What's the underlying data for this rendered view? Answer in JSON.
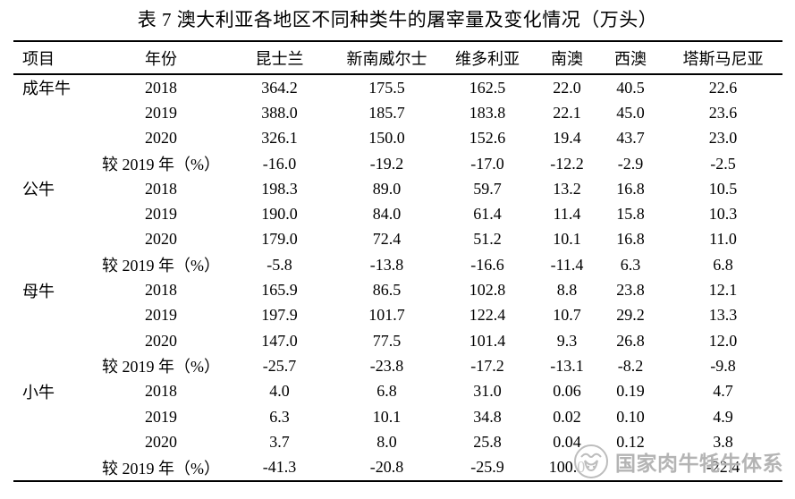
{
  "title": "表 7 澳大利亚各地区不同种类牛的屠宰量及变化情况（万头）",
  "colors": {
    "text": "#000000",
    "background": "#ffffff",
    "watermark": "#b4b4b4"
  },
  "table": {
    "columns": [
      "项目",
      "年份",
      "昆士兰",
      "新南威尔士",
      "维多利亚",
      "南澳",
      "西澳",
      "塔斯马尼亚"
    ],
    "groups": [
      {
        "item": "成年牛",
        "rows": [
          {
            "year": "2018",
            "values": [
              "364.2",
              "175.5",
              "162.5",
              "22.0",
              "40.5",
              "22.6"
            ]
          },
          {
            "year": "2019",
            "values": [
              "388.0",
              "185.7",
              "183.8",
              "22.1",
              "45.0",
              "23.6"
            ]
          },
          {
            "year": "2020",
            "values": [
              "326.1",
              "150.0",
              "152.6",
              "19.4",
              "43.7",
              "23.0"
            ]
          },
          {
            "year": "较 2019 年（%）",
            "values": [
              "-16.0",
              "-19.2",
              "-17.0",
              "-12.2",
              "-2.9",
              "-2.5"
            ]
          }
        ]
      },
      {
        "item": "公牛",
        "rows": [
          {
            "year": "2018",
            "values": [
              "198.3",
              "89.0",
              "59.7",
              "13.2",
              "16.8",
              "10.5"
            ]
          },
          {
            "year": "2019",
            "values": [
              "190.0",
              "84.0",
              "61.4",
              "11.4",
              "15.8",
              "10.3"
            ]
          },
          {
            "year": "2020",
            "values": [
              "179.0",
              "72.4",
              "51.2",
              "10.1",
              "16.8",
              "11.0"
            ]
          },
          {
            "year": "较 2019 年（%）",
            "values": [
              "-5.8",
              "-13.8",
              "-16.6",
              "-11.4",
              "6.3",
              "6.8"
            ]
          }
        ]
      },
      {
        "item": "母牛",
        "rows": [
          {
            "year": "2018",
            "values": [
              "165.9",
              "86.5",
              "102.8",
              "8.8",
              "23.8",
              "12.1"
            ]
          },
          {
            "year": "2019",
            "values": [
              "197.9",
              "101.7",
              "122.4",
              "10.7",
              "29.2",
              "13.3"
            ]
          },
          {
            "year": "2020",
            "values": [
              "147.0",
              "77.5",
              "101.4",
              "9.3",
              "26.8",
              "12.0"
            ]
          },
          {
            "year": "较 2019 年（%）",
            "values": [
              "-25.7",
              "-23.8",
              "-17.2",
              "-13.1",
              "-8.2",
              "-9.8"
            ]
          }
        ]
      },
      {
        "item": "小牛",
        "rows": [
          {
            "year": "2018",
            "values": [
              "4.0",
              "6.8",
              "31.0",
              "0.06",
              "0.19",
              "4.7"
            ]
          },
          {
            "year": "2019",
            "values": [
              "6.3",
              "10.1",
              "34.8",
              "0.02",
              "0.10",
              "4.9"
            ]
          },
          {
            "year": "2020",
            "values": [
              "3.7",
              "8.0",
              "25.8",
              "0.04",
              "0.12",
              "3.8"
            ]
          },
          {
            "year": "较 2019 年（%）",
            "values": [
              "-41.3",
              "-20.8",
              "-25.9",
              "100.0",
              "",
              "-22.4"
            ]
          }
        ]
      }
    ]
  },
  "watermark": {
    "text": "国家肉牛牦牛体系",
    "logo": "cattle-head-logo"
  }
}
